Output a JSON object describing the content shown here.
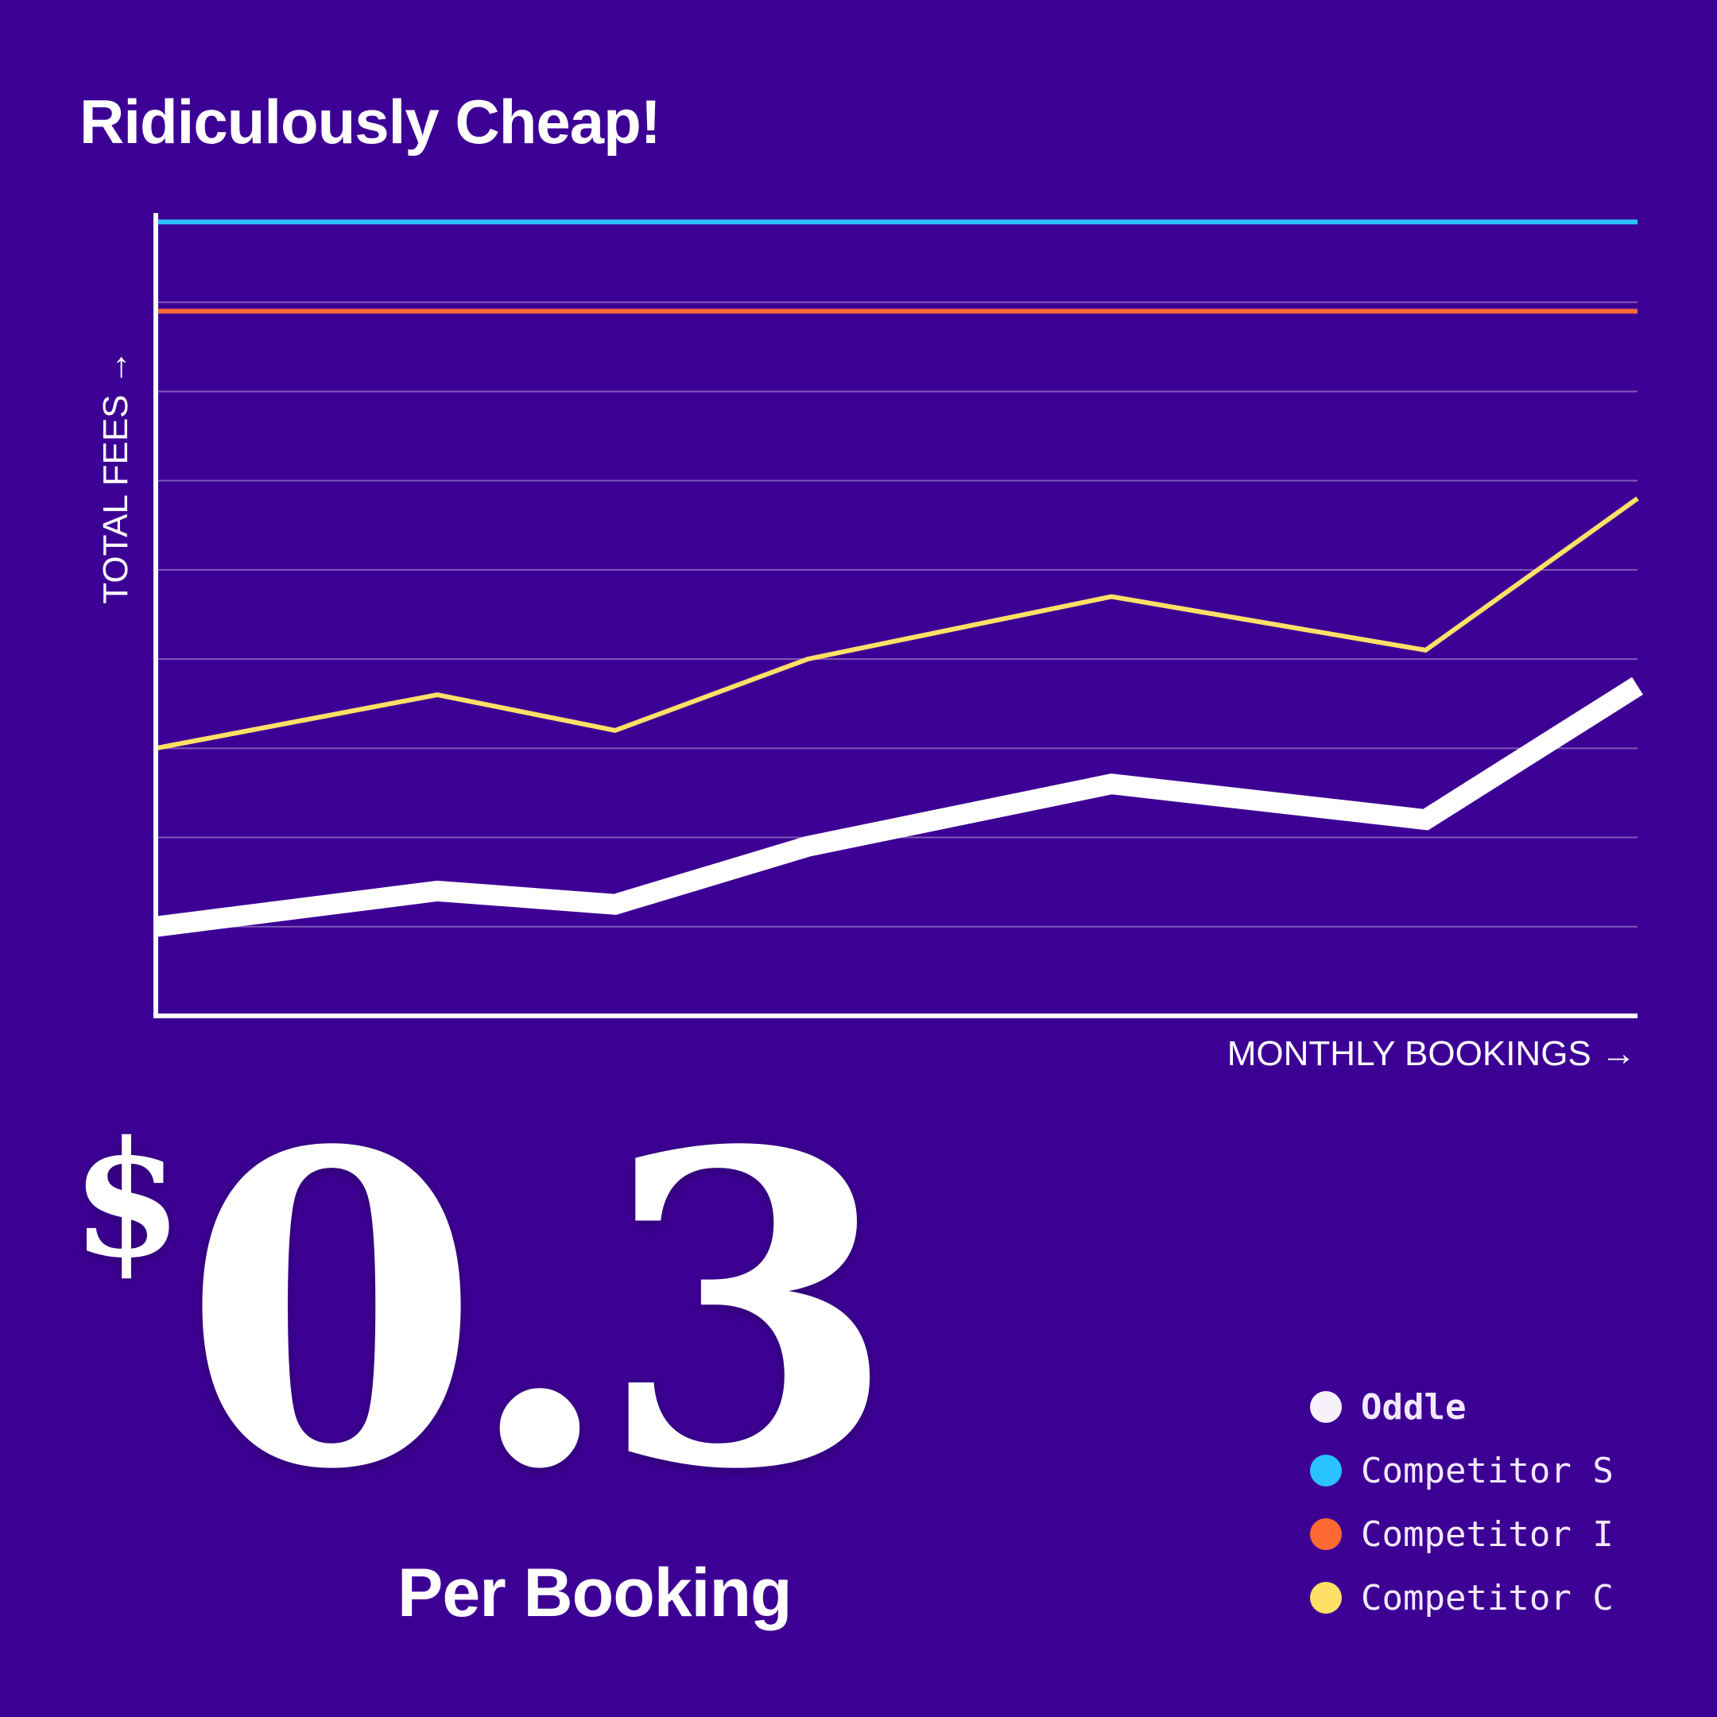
{
  "title": "Ridiculously Cheap!",
  "hero": {
    "currency": "$",
    "value": "0.3",
    "caption": "Per Booking"
  },
  "chart_data": {
    "type": "line",
    "title": "Ridiculously Cheap!",
    "xlabel": "MONTHLY BOOKINGS →",
    "ylabel": "TOTAL FEES →",
    "ylim": [
      0,
      9
    ],
    "xlim": [
      0,
      1
    ],
    "grid": true,
    "legend_position": "bottom-right",
    "x": [
      0,
      0.19,
      0.31,
      0.44,
      0.645,
      0.857,
      1.0
    ],
    "series": [
      {
        "name": "Oddle",
        "color": "#ffffff",
        "values": [
          1.0,
          1.4,
          1.25,
          1.9,
          2.6,
          2.2,
          3.7
        ]
      },
      {
        "name": "Competitor S",
        "color": "#29c4ff",
        "values": [
          8.9,
          8.9,
          8.9,
          8.9,
          8.9,
          8.9,
          8.9
        ]
      },
      {
        "name": "Competitor I",
        "color": "#ff6a33",
        "values": [
          7.9,
          7.9,
          7.9,
          7.9,
          7.9,
          7.9,
          7.9
        ]
      },
      {
        "name": "Competitor C",
        "color": "#ffe066",
        "values": [
          3.0,
          3.6,
          3.2,
          4.0,
          4.7,
          4.1,
          5.8
        ]
      }
    ]
  }
}
